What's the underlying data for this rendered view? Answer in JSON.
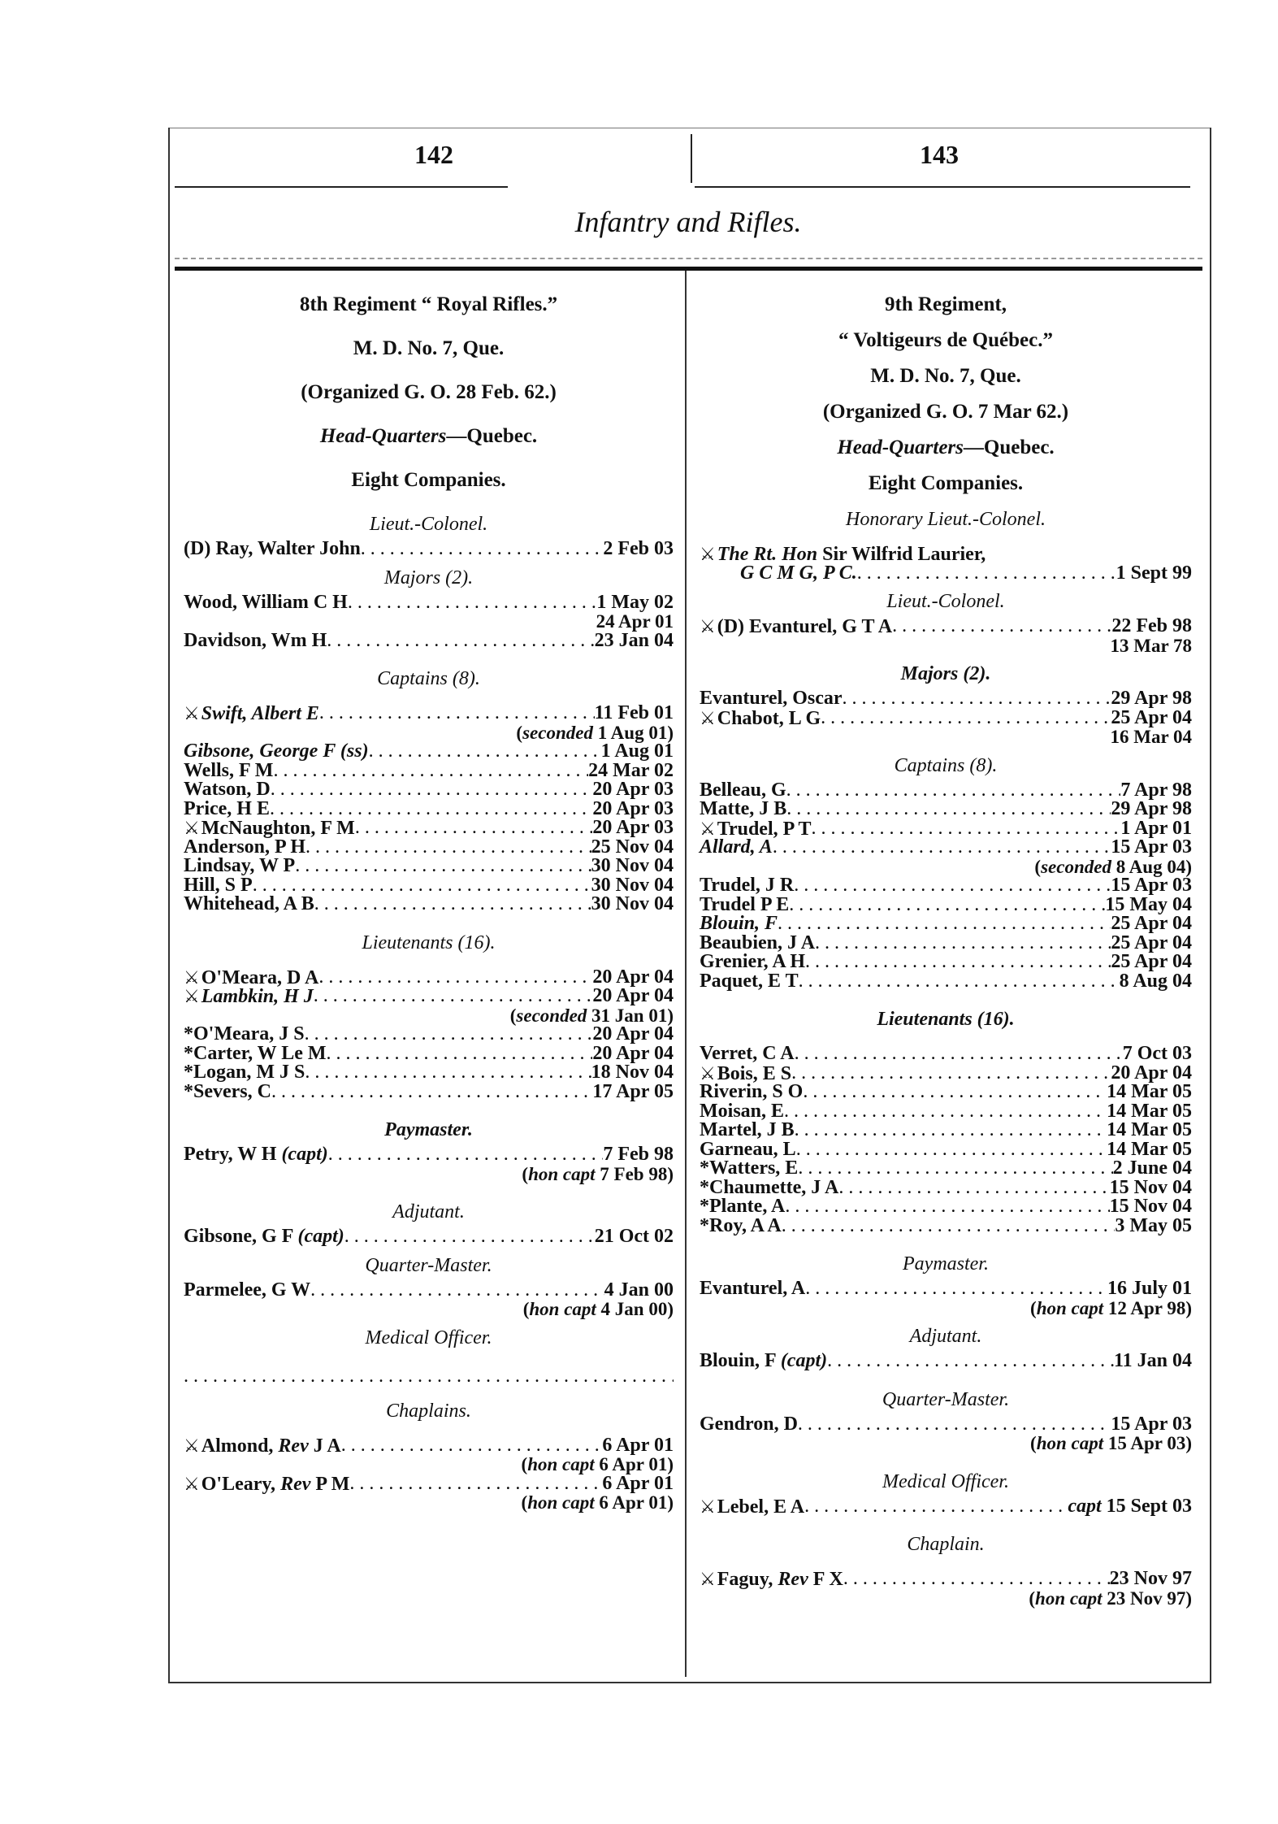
{
  "page_numbers": {
    "left": "142",
    "right": "143"
  },
  "title": "Infantry and Rifles.",
  "columns": [
    {
      "blocks": [
        {
          "type": "head",
          "segs": [
            {
              "t": "8th"
            },
            {
              "t": " Regiment “ Royal Rifles.”"
            }
          ]
        },
        {
          "type": "head",
          "segs": [
            {
              "t": "M. D. No. 7, Que."
            }
          ]
        },
        {
          "type": "head",
          "segs": [
            {
              "t": "(Organized G. O. 28 Feb. 62.)"
            }
          ]
        },
        {
          "type": "head",
          "segs": [
            {
              "t": "Head-Quarters",
              "i": true
            },
            {
              "t": "—Quebec."
            }
          ]
        },
        {
          "type": "head",
          "segs": [
            {
              "t": "Eight Companies."
            }
          ]
        },
        {
          "type": "sec",
          "text": "Lieut.-Colonel."
        },
        {
          "type": "ent",
          "segs": [
            {
              "t": "(D) Ray, Walter John"
            }
          ],
          "date": "2 Feb 03"
        },
        {
          "type": "sec",
          "text": "Majors (2)."
        },
        {
          "type": "ent",
          "segs": [
            {
              "t": "Wood, William C H"
            }
          ],
          "date": "1 May 02"
        },
        {
          "type": "note",
          "segs": [
            {
              "t": "24 Apr 01"
            }
          ]
        },
        {
          "type": "ent",
          "segs": [
            {
              "t": "Davidson, Wm H"
            }
          ],
          "date": "23 Jan 04"
        },
        {
          "type": "sec",
          "gap": true,
          "text": "Captains (8)."
        },
        {
          "type": "ent",
          "mg": true,
          "sw": true,
          "segs": [
            {
              "t": "Swift, Albert E",
              "i": true
            }
          ],
          "date": "11 Feb 01"
        },
        {
          "type": "note",
          "segs": [
            {
              "t": "(",
              "i": false
            },
            {
              "t": "seconded",
              "i": true
            },
            {
              "t": " 1 Aug 01)"
            }
          ]
        },
        {
          "type": "ent",
          "segs": [
            {
              "t": "Gibsone, George F (ss)",
              "i": true
            }
          ],
          "date": "1 Aug 01"
        },
        {
          "type": "ent",
          "segs": [
            {
              "t": "Wells, F M"
            }
          ],
          "date": "24 Mar 02"
        },
        {
          "type": "ent",
          "segs": [
            {
              "t": "Watson, D"
            }
          ],
          "date": "20 Apr 03"
        },
        {
          "type": "ent",
          "segs": [
            {
              "t": "Price, H E"
            }
          ],
          "date": "20 Apr 03"
        },
        {
          "type": "ent",
          "sw": true,
          "segs": [
            {
              "t": "McNaughton, F M"
            }
          ],
          "date": "20 Apr 03"
        },
        {
          "type": "ent",
          "segs": [
            {
              "t": "Anderson, P H"
            }
          ],
          "date": "25 Nov 04"
        },
        {
          "type": "ent",
          "segs": [
            {
              "t": "Lindsay, W P"
            }
          ],
          "date": "30 Nov 04"
        },
        {
          "type": "ent",
          "segs": [
            {
              "t": "Hill, S P"
            }
          ],
          "date": "30 Nov 04"
        },
        {
          "type": "ent",
          "segs": [
            {
              "t": "Whitehead, A B"
            }
          ],
          "date": "30 Nov 04"
        },
        {
          "type": "sec",
          "gap": true,
          "text": "Lieutenants (16)."
        },
        {
          "type": "ent",
          "mg": true,
          "sw": true,
          "segs": [
            {
              "t": "O'Meara, D A"
            }
          ],
          "date": "20 Apr 04"
        },
        {
          "type": "ent",
          "sw": true,
          "segs": [
            {
              "t": "Lambkin, H J",
              "i": true
            }
          ],
          "date": "20 Apr 04"
        },
        {
          "type": "note",
          "segs": [
            {
              "t": "("
            },
            {
              "t": "seconded",
              "i": true
            },
            {
              "t": " 31 Jan 01)"
            }
          ]
        },
        {
          "type": "ent",
          "segs": [
            {
              "t": "*O'Meara, J S"
            }
          ],
          "date": "20 Apr 04"
        },
        {
          "type": "ent",
          "segs": [
            {
              "t": "*Carter, W Le M"
            }
          ],
          "date": "20 Apr 04"
        },
        {
          "type": "ent",
          "segs": [
            {
              "t": "*Logan, M J S"
            }
          ],
          "date": "18 Nov 04"
        },
        {
          "type": "ent",
          "segs": [
            {
              "t": "*Severs, C"
            }
          ],
          "date": "17 Apr 05"
        },
        {
          "type": "sec",
          "gap": true,
          "bold": true,
          "text": "Paymaster."
        },
        {
          "type": "ent",
          "segs": [
            {
              "t": "Petry, W H "
            },
            {
              "t": "(capt)",
              "i": true
            }
          ],
          "date": "7 Feb 98"
        },
        {
          "type": "note",
          "segs": [
            {
              "t": "("
            },
            {
              "t": "hon capt",
              "i": true
            },
            {
              "t": " 7 Feb 98)"
            }
          ]
        },
        {
          "type": "sec",
          "gap": true,
          "text": "Adjutant."
        },
        {
          "type": "ent",
          "segs": [
            {
              "t": "Gibsone, G F "
            },
            {
              "t": "(capt)",
              "i": true
            }
          ],
          "date": "21 Oct 02"
        },
        {
          "type": "sec",
          "text": "Quarter-Master."
        },
        {
          "type": "ent",
          "segs": [
            {
              "t": "Parmelee, G W"
            }
          ],
          "date": "4 Jan 00"
        },
        {
          "type": "note",
          "segs": [
            {
              "t": "("
            },
            {
              "t": "hon capt",
              "i": true
            },
            {
              "t": " 4 Jan 00)"
            }
          ]
        },
        {
          "type": "sec",
          "text": "Medical Officer."
        },
        {
          "type": "dots"
        },
        {
          "type": "sec",
          "text": "Chaplains."
        },
        {
          "type": "ent",
          "mg": true,
          "sw": true,
          "segs": [
            {
              "t": "Almond, "
            },
            {
              "t": "Rev",
              "i": true
            },
            {
              "t": " J A"
            }
          ],
          "date": "6 Apr 01"
        },
        {
          "type": "note",
          "segs": [
            {
              "t": "("
            },
            {
              "t": "hon capt",
              "i": true
            },
            {
              "t": " 6 Apr 01)"
            }
          ]
        },
        {
          "type": "ent",
          "sw": true,
          "segs": [
            {
              "t": "O'Leary, "
            },
            {
              "t": "Rev",
              "i": true
            },
            {
              "t": " P M"
            }
          ],
          "date": "6 Apr 01"
        },
        {
          "type": "note",
          "segs": [
            {
              "t": "("
            },
            {
              "t": "hon capt",
              "i": true
            },
            {
              "t": " 6 Apr 01)"
            }
          ]
        }
      ]
    },
    {
      "blocks": [
        {
          "type": "head",
          "segs": [
            {
              "t": "9th"
            },
            {
              "t": " Regiment,"
            }
          ],
          "tight": true
        },
        {
          "type": "head",
          "segs": [
            {
              "t": "“ Voltigeurs de Québec.”"
            }
          ],
          "tight": true
        },
        {
          "type": "head",
          "segs": [
            {
              "t": "M. D. No. 7, Que."
            }
          ],
          "tight": true
        },
        {
          "type": "head",
          "segs": [
            {
              "t": "(Organized G. O. 7 Mar 62.)"
            }
          ],
          "tight": true
        },
        {
          "type": "head",
          "segs": [
            {
              "t": "Head-Quarters",
              "i": true
            },
            {
              "t": "—Quebec."
            }
          ],
          "tight": true
        },
        {
          "type": "head",
          "segs": [
            {
              "t": "Eight Companies."
            }
          ],
          "tight": true
        },
        {
          "type": "sec",
          "text": "Honorary Lieut.-Colonel."
        },
        {
          "type": "ent",
          "mg": true,
          "sw": true,
          "nodots": true,
          "segs": [
            {
              "t": "The Rt. Hon",
              "i": true
            },
            {
              "t": "  Sir Wilfrid  Laurier,"
            }
          ],
          "date": ""
        },
        {
          "type": "ent",
          "indent": true,
          "segs": [
            {
              "t": "G C M G, P C.",
              "i": true
            }
          ],
          "date": "1 Sept 99"
        },
        {
          "type": "sec",
          "text": "Lieut.-Colonel."
        },
        {
          "type": "ent",
          "sw": true,
          "segs": [
            {
              "t": "(D) Evanturel, G T A"
            }
          ],
          "date": "22 Feb 98"
        },
        {
          "type": "note",
          "segs": [
            {
              "t": "13 Mar 78"
            }
          ]
        },
        {
          "type": "sec",
          "bold": true,
          "text": "Majors (2)."
        },
        {
          "type": "ent",
          "segs": [
            {
              "t": "Evanturel, Oscar"
            }
          ],
          "date": "29 Apr 98"
        },
        {
          "type": "ent",
          "sw": true,
          "segs": [
            {
              "t": "Chabot, L G"
            }
          ],
          "date": "25 Apr 04"
        },
        {
          "type": "note",
          "segs": [
            {
              "t": "16 Mar 04"
            }
          ]
        },
        {
          "type": "sec",
          "text": "Captains (8)."
        },
        {
          "type": "ent",
          "segs": [
            {
              "t": "Belleau, G"
            }
          ],
          "date": "7 Apr 98"
        },
        {
          "type": "ent",
          "segs": [
            {
              "t": "Matte, J B"
            }
          ],
          "date": "29 Apr 98"
        },
        {
          "type": "ent",
          "sw": true,
          "segs": [
            {
              "t": "Trudel, P T"
            }
          ],
          "date": "1 Apr 01"
        },
        {
          "type": "ent",
          "segs": [
            {
              "t": "Allard, A",
              "i": true
            }
          ],
          "date": "15 Apr 03"
        },
        {
          "type": "note",
          "segs": [
            {
              "t": "("
            },
            {
              "t": "seconded",
              "i": true
            },
            {
              "t": " 8 Aug 04)"
            }
          ]
        },
        {
          "type": "ent",
          "segs": [
            {
              "t": "Trudel, J R"
            }
          ],
          "date": "15 Apr 03"
        },
        {
          "type": "ent",
          "segs": [
            {
              "t": "Trudel P E"
            }
          ],
          "date": "15 May 04"
        },
        {
          "type": "ent",
          "segs": [
            {
              "t": "Blouin, F",
              "i": true
            }
          ],
          "date": "25 Apr 04"
        },
        {
          "type": "ent",
          "segs": [
            {
              "t": "Beaubien, J A"
            }
          ],
          "date": "25 Apr 04"
        },
        {
          "type": "ent",
          "segs": [
            {
              "t": "Grenier, A H"
            }
          ],
          "date": "25 Apr 04"
        },
        {
          "type": "ent",
          "segs": [
            {
              "t": "Paquet, E T"
            }
          ],
          "date": "8 Aug 04"
        },
        {
          "type": "sec",
          "gap": true,
          "bold": true,
          "text": "Lieutenants (16)."
        },
        {
          "type": "ent",
          "mg": true,
          "segs": [
            {
              "t": "Verret, C A"
            }
          ],
          "date": "7 Oct 03"
        },
        {
          "type": "ent",
          "sw": true,
          "segs": [
            {
              "t": "Bois, E S"
            }
          ],
          "date": "20 Apr 04"
        },
        {
          "type": "ent",
          "segs": [
            {
              "t": "Riverin, S O"
            }
          ],
          "date": "14 Mar 05"
        },
        {
          "type": "ent",
          "segs": [
            {
              "t": "Moisan, E"
            }
          ],
          "date": "14 Mar 05"
        },
        {
          "type": "ent",
          "segs": [
            {
              "t": "Martel, J B"
            }
          ],
          "date": "14 Mar 05"
        },
        {
          "type": "ent",
          "segs": [
            {
              "t": "Garneau, L"
            }
          ],
          "date": "14 Mar 05"
        },
        {
          "type": "ent",
          "segs": [
            {
              "t": "*Watters, E"
            }
          ],
          "date": "2 June 04"
        },
        {
          "type": "ent",
          "segs": [
            {
              "t": "*Chaumette, J A"
            }
          ],
          "date": "15 Nov 04"
        },
        {
          "type": "ent",
          "segs": [
            {
              "t": "*Plante, A"
            }
          ],
          "date": "15 Nov 04"
        },
        {
          "type": "ent",
          "segs": [
            {
              "t": "*Roy, A A"
            }
          ],
          "date": "3 May 05"
        },
        {
          "type": "sec",
          "gap": true,
          "text": "Paymaster."
        },
        {
          "type": "ent",
          "segs": [
            {
              "t": "Evanturel, A"
            }
          ],
          "date": "16 July 01"
        },
        {
          "type": "note",
          "segs": [
            {
              "t": "("
            },
            {
              "t": "hon capt",
              "i": true
            },
            {
              "t": " 12 Apr 98)"
            }
          ]
        },
        {
          "type": "sec",
          "text": "Adjutant."
        },
        {
          "type": "ent",
          "segs": [
            {
              "t": "Blouin, F "
            },
            {
              "t": "(capt)",
              "i": true
            }
          ],
          "date": "11 Jan 04"
        },
        {
          "type": "sec",
          "gap": true,
          "text": "Quarter-Master."
        },
        {
          "type": "ent",
          "segs": [
            {
              "t": "Gendron, D"
            }
          ],
          "date": "15 Apr 03"
        },
        {
          "type": "note",
          "segs": [
            {
              "t": "("
            },
            {
              "t": "hon capt",
              "i": true
            },
            {
              "t": " 15 Apr 03)"
            }
          ]
        },
        {
          "type": "sec",
          "gap": true,
          "text": "Medical Officer."
        },
        {
          "type": "ent",
          "sw": true,
          "segs": [
            {
              "t": "Lebel, E A"
            }
          ],
          "date": "15 Sept 03",
          "date_prefix": "capt"
        },
        {
          "type": "sec",
          "gap": true,
          "text": "Chaplain."
        },
        {
          "type": "ent",
          "mg": true,
          "sw": true,
          "segs": [
            {
              "t": "Faguy, "
            },
            {
              "t": "Rev",
              "i": true
            },
            {
              "t": " F X"
            }
          ],
          "date": "23 Nov 97"
        },
        {
          "type": "note",
          "segs": [
            {
              "t": "("
            },
            {
              "t": "hon capt",
              "i": true
            },
            {
              "t": " 23 Nov 97)"
            }
          ]
        }
      ]
    }
  ],
  "icons": {
    "war_service_marker": "crossed-swords-icon"
  }
}
